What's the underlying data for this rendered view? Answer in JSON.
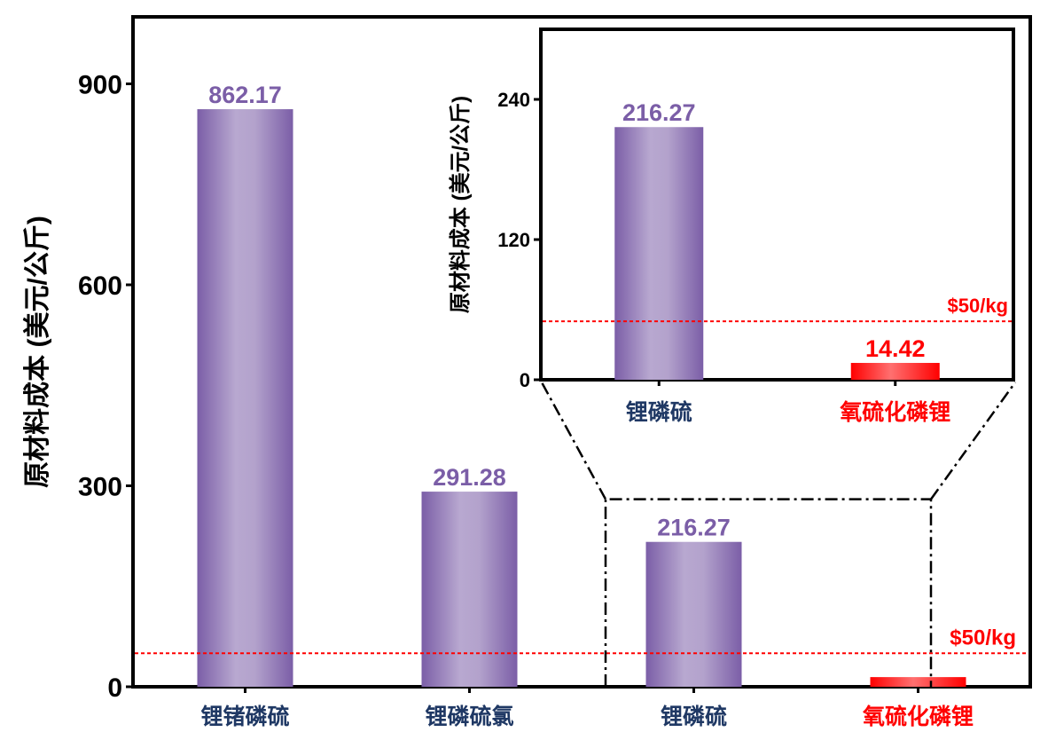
{
  "chart_data": [
    {
      "type": "bar",
      "panel": "main",
      "ylabel": "原材料成本 (美元/公斤)",
      "categories": [
        "锂锗磷硫",
        "锂磷硫氯",
        "锂磷硫",
        "氧硫化磷锂"
      ],
      "values": [
        862.17,
        291.28,
        216.27,
        14.42
      ],
      "data_labels": [
        "862.17",
        "291.28",
        "216.27",
        ""
      ],
      "category_colors": [
        "#1F3864",
        "#1F3864",
        "#1F3864",
        "#FF0000"
      ],
      "bar_colors": [
        "#7B5EA7",
        "#7B5EA7",
        "#7B5EA7",
        "#FF0000"
      ],
      "yticks": [
        "0",
        "300",
        "600",
        "900"
      ],
      "ylim": [
        0,
        1000
      ],
      "reference_line": {
        "value": 50,
        "label": "$50/kg",
        "color": "#FF0000",
        "style": "dotted"
      },
      "zoom_region": {
        "categories": [
          "锂磷硫",
          "氧硫化磷锂"
        ]
      },
      "grid": false
    },
    {
      "type": "bar",
      "panel": "inset",
      "ylabel": "原材料成本 (美元/公斤)",
      "categories": [
        "锂磷硫",
        "氧硫化磷锂"
      ],
      "values": [
        216.27,
        14.42
      ],
      "data_labels": [
        "216.27",
        "14.42"
      ],
      "category_colors": [
        "#1F3864",
        "#FF0000"
      ],
      "bar_colors": [
        "#7B5EA7",
        "#FF0000"
      ],
      "label_colors": [
        "#7B5EA7",
        "#FF0000"
      ],
      "yticks": [
        "0",
        "120",
        "240"
      ],
      "ylim": [
        0,
        300
      ],
      "reference_line": {
        "value": 50,
        "label": "$50/kg",
        "color": "#FF0000",
        "style": "dotted"
      },
      "grid": false
    }
  ]
}
